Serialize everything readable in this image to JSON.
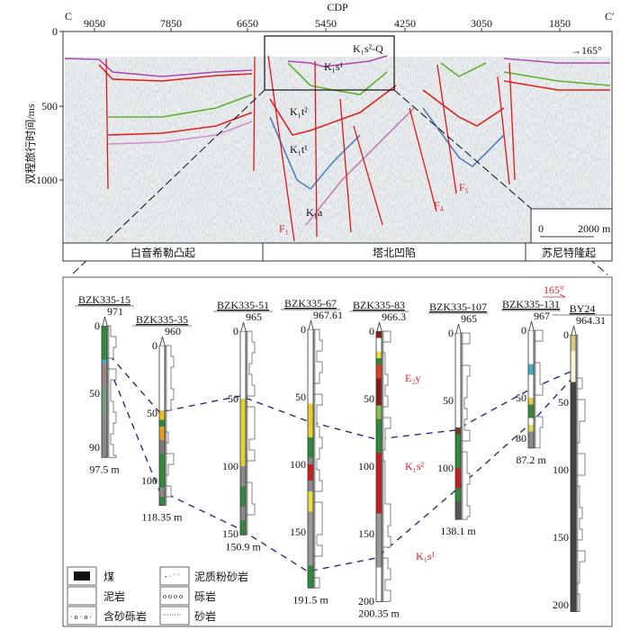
{
  "section": {
    "xaxis_title": "CDP",
    "left_end": "C",
    "right_end": "C′",
    "cdp_ticks": [
      "9050",
      "7850",
      "6650",
      "5450",
      "4250",
      "3050",
      "1850"
    ],
    "ylabel": "双程旅行时间/ms",
    "y_ticks": [
      "0",
      "500",
      "1000"
    ],
    "direction": "→165°",
    "strata_labels": [
      "K₁s²-Q",
      "K₁s¹",
      "K₁t²",
      "K₁t¹",
      "K₁a"
    ],
    "fault_labels": [
      "F₁",
      "F₄",
      "F₅"
    ],
    "scale_bar": {
      "start": "0",
      "end": "2000 m"
    },
    "regions": [
      "白音希勒凸起",
      "塔北凹陷",
      "苏尼特隆起"
    ]
  },
  "boreholes": [
    {
      "name": "BZK335-15",
      "elevation": "971",
      "bottom": "97.5 m",
      "depth": 97.5,
      "ticks": [
        "0",
        "50",
        "90"
      ],
      "layers": [
        [
          0,
          25,
          "#2e8b3a"
        ],
        [
          25,
          28,
          "#40b0c8"
        ],
        [
          28,
          45,
          "#9a8580"
        ],
        [
          45,
          65,
          "#7a9a80"
        ],
        [
          65,
          97.5,
          "#8a8a8a"
        ]
      ]
    },
    {
      "name": "BZK335-35",
      "elevation": "960",
      "bottom": "118.35 m",
      "depth": 118.35,
      "ticks": [
        "0",
        "50",
        "100"
      ],
      "layers": [
        [
          0,
          48,
          "#ffffff"
        ],
        [
          48,
          55,
          "#e8c020"
        ],
        [
          55,
          60,
          "#2e8b3a"
        ],
        [
          60,
          70,
          "#e0a020"
        ],
        [
          70,
          80,
          "#7a7a7a"
        ],
        [
          80,
          105,
          "#2e8b3a"
        ],
        [
          105,
          112,
          "#8a8a8a"
        ],
        [
          112,
          118.35,
          "#2e8b3a"
        ]
      ]
    },
    {
      "name": "BZK335-51",
      "elevation": "965",
      "bottom": "150.9 m",
      "depth": 150.9,
      "ticks": [
        "0",
        "50",
        "100",
        "150"
      ],
      "layers": [
        [
          0,
          50,
          "#ffffff"
        ],
        [
          50,
          100,
          "#e8d030"
        ],
        [
          100,
          115,
          "#8a8a8a"
        ],
        [
          115,
          130,
          "#2e8b3a"
        ],
        [
          130,
          140,
          "#8a8a8a"
        ],
        [
          140,
          150.9,
          "#2e8b3a"
        ]
      ]
    },
    {
      "name": "BZK335-67",
      "elevation": "967.61",
      "bottom": "191.5 m",
      "depth": 191.5,
      "ticks": [
        "0",
        "50",
        "100",
        "150"
      ],
      "layers": [
        [
          0,
          55,
          "#ffffff"
        ],
        [
          55,
          80,
          "#e8d030"
        ],
        [
          80,
          95,
          "#2e8b3a"
        ],
        [
          95,
          100,
          "#8a8a8a"
        ],
        [
          100,
          112,
          "#c81e1e"
        ],
        [
          112,
          120,
          "#8a8a8a"
        ],
        [
          120,
          135,
          "#e8e040"
        ],
        [
          135,
          175,
          "#9a9a9a"
        ],
        [
          175,
          191.5,
          "#2e8b3a"
        ]
      ]
    },
    {
      "name": "BZK335-83",
      "elevation": "966.3",
      "bottom": "200.35 m",
      "depth": 200.35,
      "ticks": [
        "0",
        "50",
        "100",
        "150",
        "200"
      ],
      "layers": [
        [
          0,
          5,
          "#8b1a1a"
        ],
        [
          5,
          15,
          "#ffffff"
        ],
        [
          15,
          20,
          "#e8e040"
        ],
        [
          20,
          25,
          "#2e8b3a"
        ],
        [
          25,
          35,
          "#e04020"
        ],
        [
          35,
          55,
          "#8b1a1a"
        ],
        [
          55,
          65,
          "#8ac050"
        ],
        [
          65,
          90,
          "#2e8b3a"
        ],
        [
          90,
          135,
          "#c81e1e"
        ],
        [
          135,
          175,
          "#9a9a9a"
        ],
        [
          175,
          200.35,
          "#ffffff"
        ]
      ]
    },
    {
      "name": "BZK335-107",
      "elevation": "965",
      "bottom": "138.1 m",
      "depth": 138.1,
      "ticks": [
        "0",
        "50",
        "100"
      ],
      "layers": [
        [
          0,
          70,
          "#ffffff"
        ],
        [
          70,
          75,
          "#7a3a20"
        ],
        [
          75,
          100,
          "#2e8b3a"
        ],
        [
          100,
          115,
          "#c81e1e"
        ],
        [
          115,
          125,
          "#2e8b3a"
        ],
        [
          125,
          138.1,
          "#555555"
        ]
      ]
    },
    {
      "name": "BZK335-131",
      "elevation": "967",
      "bottom": "87.2 m",
      "depth": 87.2,
      "ticks": [
        "0",
        "50",
        "80"
      ],
      "layers": [
        [
          0,
          25,
          "#ffffff"
        ],
        [
          25,
          33,
          "#40b0c8"
        ],
        [
          33,
          50,
          "#ffffff"
        ],
        [
          50,
          55,
          "#e8d030"
        ],
        [
          55,
          65,
          "#2e8b3a"
        ],
        [
          65,
          70,
          "#ffffff"
        ],
        [
          70,
          75,
          "#e8e040"
        ],
        [
          75,
          87.2,
          "#8a8a8a"
        ]
      ]
    },
    {
      "name": "BY24",
      "elevation": "964.31",
      "bottom": "",
      "depth": 205,
      "ticks": [
        "0",
        "50",
        "100",
        "150",
        "200"
      ],
      "layers": [
        [
          0,
          12,
          "#d8c880"
        ],
        [
          12,
          35,
          "#f8f4d8"
        ],
        [
          35,
          205,
          "#444444"
        ]
      ]
    }
  ],
  "lower_labels": {
    "direction": "165°",
    "e2y": "E₂y",
    "k1s2": "K₁s²",
    "k1s1": "K₁s¹"
  },
  "legend": [
    "煤",
    "泥岩",
    "含砂砾岩",
    "泥质粉砂岩",
    "砾岩",
    "砂岩"
  ]
}
